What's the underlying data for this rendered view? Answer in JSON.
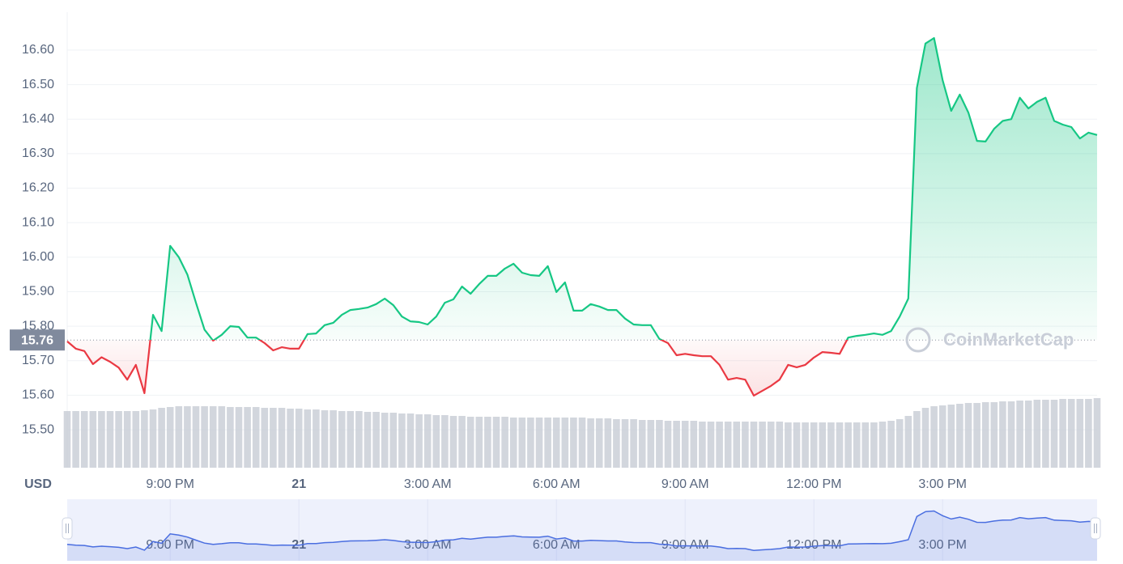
{
  "chart_data": {
    "type": "line",
    "ylim": [
      15.39,
      16.71
    ],
    "yticks": [
      {
        "value": 15.5,
        "label": "15.50"
      },
      {
        "value": 15.6,
        "label": "15.60"
      },
      {
        "value": 15.7,
        "label": "15.70"
      },
      {
        "value": 15.8,
        "label": "15.80"
      },
      {
        "value": 15.9,
        "label": "15.90"
      },
      {
        "value": 16.0,
        "label": "16.00"
      },
      {
        "value": 16.1,
        "label": "16.10"
      },
      {
        "value": 16.2,
        "label": "16.20"
      },
      {
        "value": 16.3,
        "label": "16.30"
      },
      {
        "value": 16.4,
        "label": "16.40"
      },
      {
        "value": 16.5,
        "label": "16.50"
      },
      {
        "value": 16.6,
        "label": "16.60"
      }
    ],
    "y_unit": "USD",
    "baseline": 15.76,
    "watermark": "CoinMarketCap",
    "grid": true,
    "categories": [
      null,
      null,
      null,
      null,
      null,
      null,
      null,
      null,
      null,
      null,
      null,
      null,
      "9:00 PM",
      null,
      null,
      null,
      null,
      null,
      null,
      null,
      null,
      null,
      null,
      null,
      null,
      null,
      null,
      "21",
      null,
      null,
      null,
      null,
      null,
      null,
      null,
      null,
      null,
      null,
      null,
      null,
      null,
      null,
      "3:00 AM",
      null,
      null,
      null,
      null,
      null,
      null,
      null,
      null,
      null,
      null,
      null,
      null,
      null,
      null,
      "6:00 AM",
      null,
      null,
      null,
      null,
      null,
      null,
      null,
      null,
      null,
      null,
      null,
      null,
      null,
      null,
      "9:00 AM",
      null,
      null,
      null,
      null,
      null,
      null,
      null,
      null,
      null,
      null,
      null,
      null,
      null,
      null,
      "12:00 PM",
      null,
      null,
      null,
      null,
      null,
      null,
      null,
      null,
      null,
      null,
      null,
      null,
      null,
      null,
      "3:00 PM",
      null,
      null,
      null,
      null,
      null,
      null,
      null,
      null,
      null,
      null,
      null,
      null,
      null,
      null,
      null,
      null,
      null,
      null
    ],
    "colors": {
      "up": "#16c784",
      "down": "#ea3943",
      "volume": "#c3c8d2",
      "navigator": "#4a6ee0"
    },
    "values": [
      15.756,
      15.735,
      15.728,
      15.69,
      15.71,
      15.697,
      15.68,
      15.645,
      15.688,
      15.606,
      15.833,
      15.786,
      16.033,
      16.0,
      15.95,
      15.868,
      15.79,
      15.758,
      15.775,
      15.8,
      15.798,
      15.767,
      15.767,
      15.751,
      15.73,
      15.739,
      15.735,
      15.735,
      15.777,
      15.779,
      15.803,
      15.81,
      15.833,
      15.847,
      15.85,
      15.854,
      15.864,
      15.88,
      15.861,
      15.828,
      15.814,
      15.812,
      15.805,
      15.828,
      15.868,
      15.878,
      15.915,
      15.894,
      15.922,
      15.946,
      15.946,
      15.967,
      15.981,
      15.955,
      15.948,
      15.946,
      15.974,
      15.899,
      15.927,
      15.845,
      15.845,
      15.864,
      15.857,
      15.847,
      15.847,
      15.822,
      15.805,
      15.803,
      15.803,
      15.763,
      15.751,
      15.716,
      15.72,
      15.716,
      15.713,
      15.713,
      15.688,
      15.645,
      15.65,
      15.645,
      15.599,
      15.613,
      15.627,
      15.645,
      15.688,
      15.681,
      15.688,
      15.709,
      15.725,
      15.723,
      15.72,
      15.767,
      15.772,
      15.775,
      15.779,
      15.775,
      15.786,
      15.828,
      15.88,
      16.49,
      16.619,
      16.635,
      16.513,
      16.424,
      16.471,
      16.419,
      16.337,
      16.335,
      16.372,
      16.395,
      16.4,
      16.462,
      16.431,
      16.45,
      16.462,
      16.395,
      16.384,
      16.377,
      16.344,
      16.361,
      16.354
    ],
    "volume": [
      70,
      70,
      70,
      70,
      70,
      70,
      70,
      70,
      70,
      71,
      72,
      74,
      75,
      76,
      76,
      76,
      76,
      76,
      76,
      75,
      75,
      75,
      75,
      74,
      74,
      74,
      73,
      73,
      72,
      72,
      71,
      71,
      70,
      70,
      70,
      69,
      69,
      68,
      68,
      67,
      67,
      66,
      66,
      65,
      65,
      64,
      64,
      63,
      63,
      63,
      63,
      63,
      62,
      62,
      62,
      62,
      62,
      62,
      62,
      62,
      62,
      61,
      61,
      61,
      60,
      60,
      60,
      59,
      59,
      59,
      58,
      58,
      58,
      58,
      57,
      57,
      57,
      57,
      57,
      57,
      57,
      57,
      57,
      57,
      56,
      56,
      56,
      56,
      56,
      56,
      56,
      56,
      56,
      56,
      56,
      57,
      58,
      60,
      64,
      70,
      74,
      76,
      77,
      78,
      79,
      80,
      80,
      81,
      81,
      82,
      82,
      83,
      83,
      84,
      84,
      84,
      85,
      85,
      85,
      85,
      86
    ]
  }
}
